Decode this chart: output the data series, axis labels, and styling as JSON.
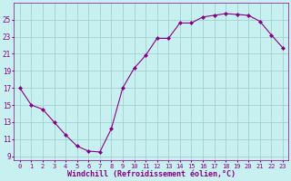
{
  "x": [
    0,
    1,
    2,
    3,
    4,
    5,
    6,
    7,
    8,
    9,
    10,
    11,
    12,
    13,
    14,
    15,
    16,
    17,
    18,
    19,
    20,
    21,
    22,
    23
  ],
  "y": [
    17,
    15,
    14.5,
    13,
    11.5,
    10.2,
    9.6,
    9.5,
    12.2,
    17,
    19.3,
    20.8,
    22.8,
    22.8,
    24.6,
    24.6,
    25.3,
    25.5,
    25.7,
    25.6,
    25.5,
    24.8,
    23.2,
    21.7
  ],
  "line_color": "#880088",
  "marker": "D",
  "marker_size": 2,
  "bg_color": "#c8f0f0",
  "grid_color": "#99cccc",
  "xlabel": "Windchill (Refroidissement éolien,°C)",
  "xlabel_color": "#880088",
  "tick_color": "#880088",
  "ylabel_ticks": [
    9,
    11,
    13,
    15,
    17,
    19,
    21,
    23,
    25
  ],
  "xtick_labels": [
    "0",
    "1",
    "2",
    "3",
    "4",
    "5",
    "6",
    "7",
    "8",
    "9",
    "10",
    "11",
    "12",
    "13",
    "14",
    "15",
    "16",
    "17",
    "18",
    "19",
    "20",
    "21",
    "22",
    "23"
  ],
  "ylim": [
    8.5,
    27
  ],
  "xlim": [
    -0.5,
    23.5
  ],
  "font_family": "monospace",
  "font_size_x": 5.0,
  "font_size_y": 5.5,
  "font_size_xlabel": 6.0,
  "linewidth": 0.8
}
